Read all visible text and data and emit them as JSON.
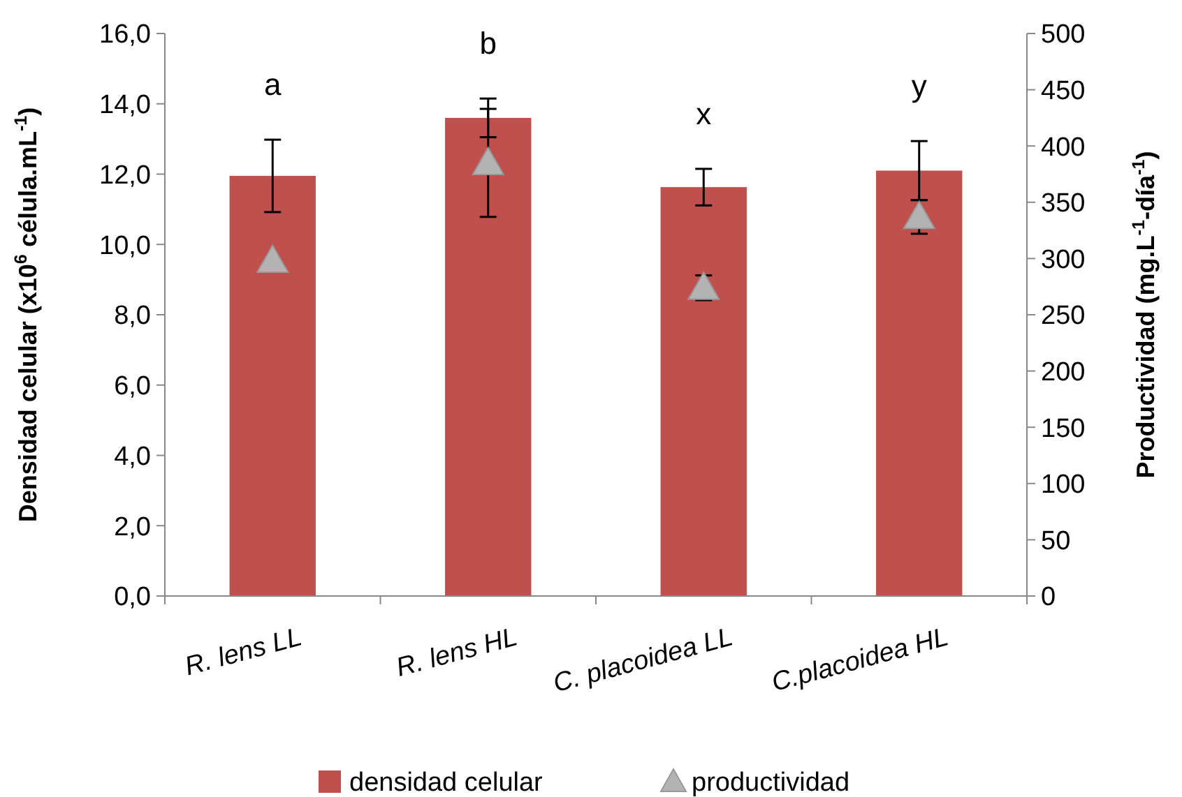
{
  "chart_data": {
    "type": "bar",
    "categories": [
      "R. lens LL",
      "R. lens HL",
      "C. placoidea  LL",
      "C.placoidea HL"
    ],
    "ylabel": "Densidad  celular (x10$^{6}$ célula.mL$^{-1}$)",
    "y2label": "Productividad  (mg.L$^{-1}$-día$^{-1}$)",
    "ylim": [
      0,
      16
    ],
    "yticks": [
      {
        "value": 0,
        "label": "0,0"
      },
      {
        "value": 2,
        "label": "2,0"
      },
      {
        "value": 4,
        "label": "4,0"
      },
      {
        "value": 6,
        "label": "6,0"
      },
      {
        "value": 8,
        "label": "8,0"
      },
      {
        "value": 10,
        "label": "10,0"
      },
      {
        "value": 12,
        "label": "12,0"
      },
      {
        "value": 14,
        "label": "14,0"
      },
      {
        "value": 16,
        "label": "16,0"
      }
    ],
    "y2lim": [
      0,
      500
    ],
    "y2ticks": [
      0,
      50,
      100,
      150,
      200,
      250,
      300,
      350,
      400,
      450,
      500
    ],
    "series": [
      {
        "name": "densidad celular",
        "color": "#c0504d",
        "values": [
          11.95,
          13.6,
          11.63,
          12.1
        ],
        "errors": [
          1.03,
          0.55,
          0.52,
          0.84
        ]
      },
      {
        "name": "productividad",
        "type": "scatter",
        "axis": "y2",
        "color": "#b3b3b3",
        "marker": "triangle",
        "values": [
          298,
          385,
          274,
          337
        ],
        "errors": [
          null,
          48,
          11,
          15
        ]
      }
    ],
    "annotations": [
      "a",
      "b",
      "x",
      "y"
    ],
    "legend": "bottom",
    "grid": false
  }
}
